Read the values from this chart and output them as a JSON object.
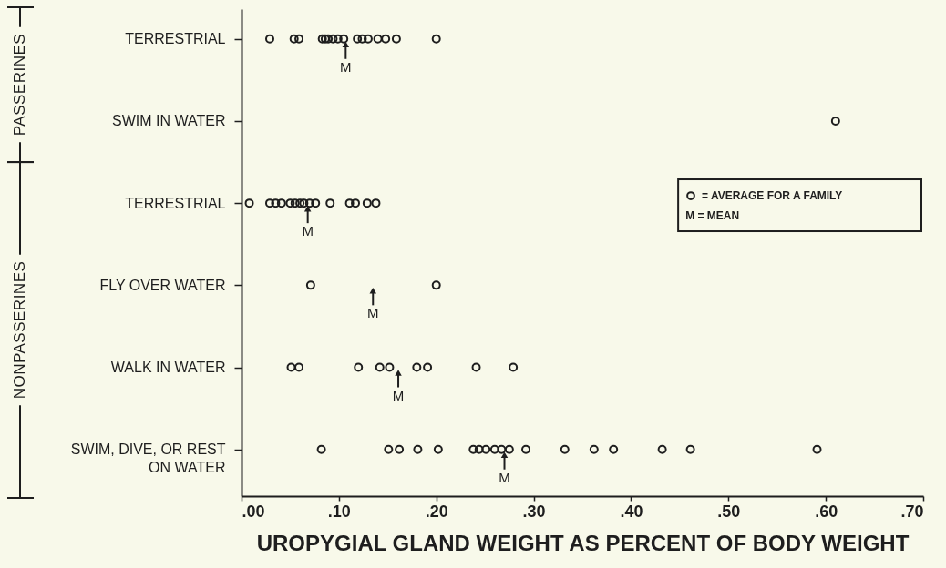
{
  "chart_data": {
    "type": "scatter",
    "orientation": "horizontal",
    "categories": [
      "TERRESTRIAL",
      "SWIM IN WATER",
      "TERRESTRIAL",
      "FLY OVER WATER",
      "WALK IN WATER",
      "SWIM, DIVE, OR REST\nON WATER"
    ],
    "xlabel": "UROPYGIAL GLAND WEIGHT AS PERCENT OF BODY WEIGHT",
    "xlim": [
      0,
      0.7
    ],
    "xticks": [
      {
        "value": 0,
        "label": ".00"
      },
      {
        "value": 0.1,
        "label": ".10"
      },
      {
        "value": 0.2,
        "label": ".20"
      },
      {
        "value": 0.3,
        "label": ".30"
      },
      {
        "value": 0.4,
        "label": ".40"
      },
      {
        "value": 0.5,
        "label": ".50"
      },
      {
        "value": 0.6,
        "label": ".60"
      },
      {
        "value": 0.7,
        "label": ".70"
      }
    ],
    "annotations": [
      "PASSERINES",
      "NONPASSERINES",
      "M = MEAN"
    ],
    "legend": "right",
    "series": [
      {
        "name": "= AVERAGE FOR A FAMILY",
        "marker": "circle",
        "color": "#1e1e1e",
        "values": [
          0.029,
          0.61,
          0.008,
          0.071,
          0.051,
          0.082
        ]
      },
      {
        "marker": "circle",
        "color": "#1e1e1e",
        "values": [
          0.054,
          null,
          0.029,
          0.2,
          0.059,
          0.151
        ]
      },
      {
        "marker": "circle",
        "color": "#1e1e1e",
        "values": [
          0.059,
          null,
          0.035,
          null,
          0.12,
          0.162
        ]
      },
      {
        "marker": "circle",
        "color": "#1e1e1e",
        "values": [
          0.083,
          null,
          0.041,
          null,
          0.142,
          0.181
        ]
      },
      {
        "marker": "circle",
        "color": "#1e1e1e",
        "values": [
          0.086,
          null,
          0.05,
          null,
          0.152,
          0.202
        ]
      },
      {
        "marker": "circle",
        "color": "#1e1e1e",
        "values": [
          0.089,
          null,
          0.055,
          null,
          0.18,
          0.238
        ]
      },
      {
        "marker": "circle",
        "color": "#1e1e1e",
        "values": [
          0.094,
          null,
          0.06,
          null,
          0.191,
          0.244
        ]
      },
      {
        "marker": "circle",
        "color": "#1e1e1e",
        "values": [
          0.099,
          null,
          0.064,
          null,
          0.241,
          0.251
        ]
      },
      {
        "marker": "circle",
        "color": "#1e1e1e",
        "values": [
          0.105,
          null,
          0.07,
          null,
          0.279,
          0.26
        ]
      },
      {
        "marker": "circle",
        "color": "#1e1e1e",
        "values": [
          0.119,
          null,
          0.076,
          null,
          null,
          0.267
        ]
      },
      {
        "marker": "circle",
        "color": "#1e1e1e",
        "values": [
          0.124,
          null,
          0.091,
          null,
          null,
          0.275
        ]
      },
      {
        "marker": "circle",
        "color": "#1e1e1e",
        "values": [
          0.13,
          null,
          0.111,
          null,
          null,
          0.292
        ]
      },
      {
        "marker": "circle",
        "color": "#1e1e1e",
        "values": [
          0.14,
          null,
          0.117,
          null,
          null,
          0.332
        ]
      },
      {
        "marker": "circle",
        "color": "#1e1e1e",
        "values": [
          0.148,
          null,
          0.129,
          null,
          null,
          0.362
        ]
      },
      {
        "marker": "circle",
        "color": "#1e1e1e",
        "values": [
          0.159,
          null,
          0.138,
          null,
          null,
          0.382
        ]
      },
      {
        "marker": "circle",
        "color": "#1e1e1e",
        "values": [
          0.2,
          null,
          null,
          null,
          null,
          0.432
        ]
      },
      {
        "marker": "circle",
        "color": "#1e1e1e",
        "values": [
          null,
          null,
          null,
          null,
          null,
          0.461
        ]
      },
      {
        "marker": "circle",
        "color": "#1e1e1e",
        "values": [
          null,
          null,
          null,
          null,
          null,
          0.591
        ]
      },
      {
        "marker": "triangle",
        "color": "#1e1e1e",
        "values": [
          0.107,
          null,
          0.068,
          0.135,
          0.161,
          0.27
        ],
        "value_labels": [
          "M",
          null,
          "M",
          "M",
          "M",
          "M"
        ]
      }
    ]
  }
}
